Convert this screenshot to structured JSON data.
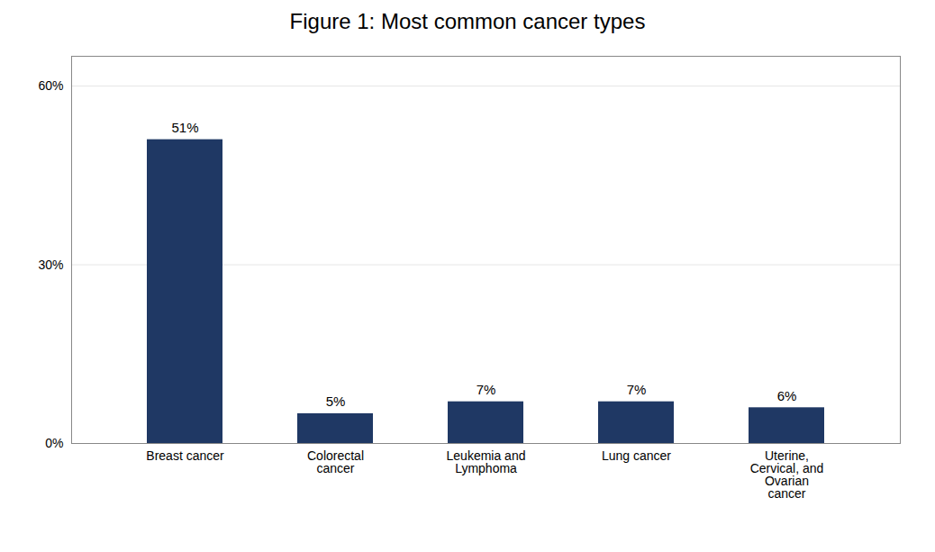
{
  "chart_data": {
    "type": "bar",
    "title": "Figure 1: Most common cancer types",
    "categories": [
      "Breast cancer",
      "Colorectal\ncancer",
      "Leukemia and\nLymphoma",
      "Lung cancer",
      "Uterine,\nCervical, and\nOvarian\ncancer"
    ],
    "values": [
      51,
      5,
      7,
      7,
      6
    ],
    "value_labels": [
      "51%",
      "5%",
      "7%",
      "7%",
      "6%"
    ],
    "data_labels": true,
    "color": "#1F3864",
    "ylim": [
      0,
      65
    ],
    "yticks": [
      {
        "value": 0,
        "label": "0%"
      },
      {
        "value": 30,
        "label": "30%"
      },
      {
        "value": 60,
        "label": "60%"
      }
    ],
    "grid": true
  }
}
